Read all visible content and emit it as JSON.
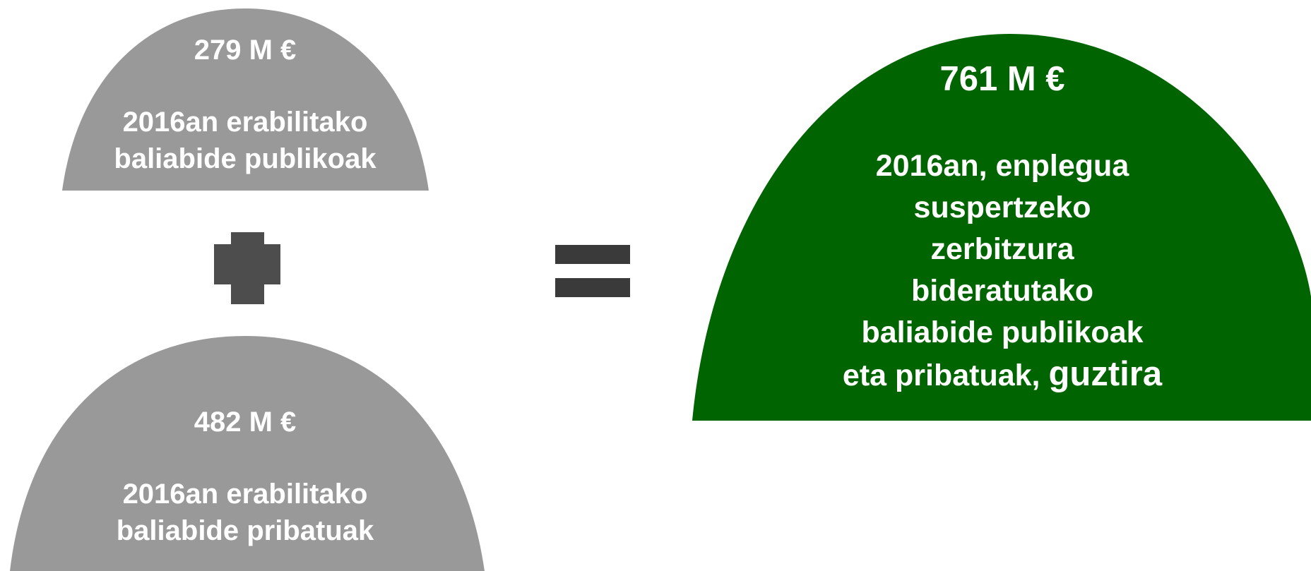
{
  "colors": {
    "grey_shape": "#999999",
    "green_shape": "#006400",
    "operator": "#4d4d4d",
    "operator_equals": "#3a3a3a",
    "text": "#ffffff"
  },
  "public": {
    "amount": "279 M €",
    "line1": "2016an erabilitako",
    "line2": "baliabide publikoak"
  },
  "private": {
    "amount": "482 M €",
    "line1": "2016an erabilitako",
    "line2": "baliabide pribatuak"
  },
  "total": {
    "amount": "761 M €",
    "line1": "2016an, enplegua",
    "line2": "suspertzeko",
    "line3": "zerbitzura",
    "line4": "bideratutako",
    "line5": "baliabide publikoak",
    "line6_prefix": "eta pribatuak, ",
    "line6_emph": "guztira"
  },
  "operators": {
    "plus": "plus-icon",
    "equals": "equals-icon"
  }
}
